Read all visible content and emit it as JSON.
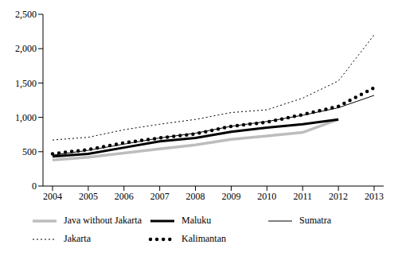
{
  "chart_data": {
    "type": "line",
    "categories": [
      "2004",
      "2005",
      "2006",
      "2007",
      "2008",
      "2009",
      "2010",
      "2011",
      "2012",
      "2013"
    ],
    "series": [
      {
        "name": "Java without Jakarta",
        "color": "#bdbdbd",
        "line_style": "solid",
        "values": [
          380,
          420,
          480,
          540,
          600,
          680,
          730,
          780,
          970,
          null
        ]
      },
      {
        "name": "Maluku",
        "color": "#000000",
        "line_style": "solid",
        "values": [
          430,
          470,
          560,
          650,
          700,
          790,
          850,
          900,
          970,
          null
        ]
      },
      {
        "name": "Sumatra",
        "color": "#000000",
        "line_style": "solid",
        "values": [
          450,
          520,
          610,
          700,
          770,
          870,
          940,
          1030,
          1140,
          1320
        ]
      },
      {
        "name": "Jakarta",
        "color": "#000000",
        "line_style": "dotted",
        "values": [
          670,
          710,
          820,
          900,
          970,
          1070,
          1110,
          1280,
          1530,
          2200
        ]
      },
      {
        "name": "Kalimantan",
        "color": "#000000",
        "line_style": "dotted",
        "values": [
          470,
          530,
          630,
          700,
          760,
          870,
          930,
          1040,
          1160,
          1430
        ]
      }
    ],
    "ylim": [
      0,
      2500
    ],
    "yticks": [
      0,
      {
        "value": 500,
        "label": "500"
      },
      {
        "value": 1000,
        "label": "1,000"
      },
      {
        "value": 1500,
        "label": "1,500"
      },
      {
        "value": 2000,
        "label": "2,000"
      },
      {
        "value": 2500,
        "label": "2,500"
      }
    ],
    "grid": false
  }
}
